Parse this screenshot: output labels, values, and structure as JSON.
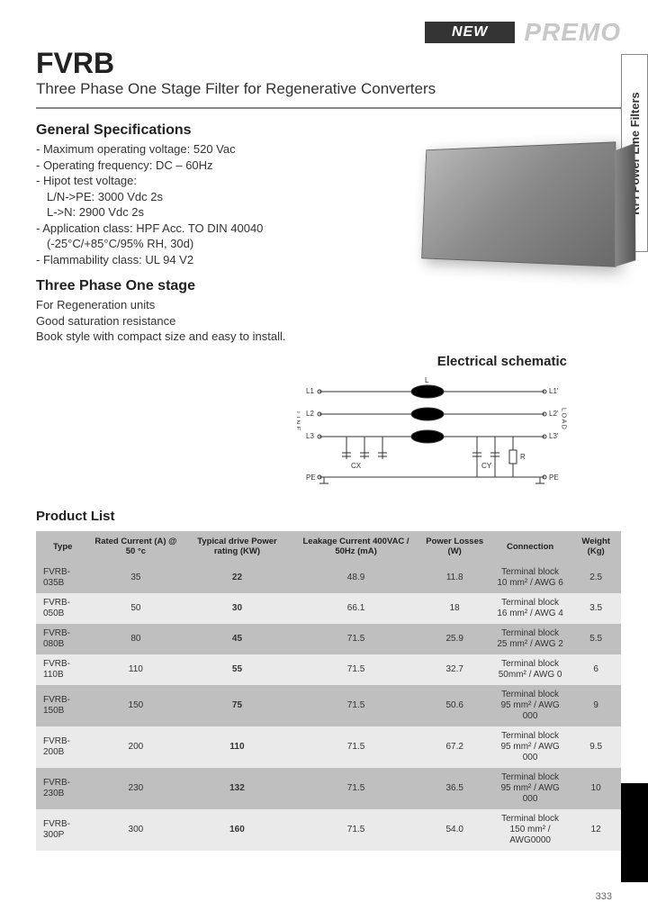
{
  "header": {
    "new_badge": "NEW",
    "brand": "PREMO",
    "product_code": "FVRB",
    "subtitle": "Three Phase One Stage Filter for Regenerative Converters"
  },
  "side_tab": "RFI Power Line Filters",
  "specs": {
    "title": "General Specifications",
    "lines": [
      "- Maximum operating voltage: 520 Vac",
      "- Operating frequency: DC – 60Hz",
      "- Hipot test voltage:",
      "L/N->PE: 3000 Vdc 2s",
      "L->N: 2900 Vdc 2s",
      "- Application class: HPF Acc. TO DIN 40040",
      "(-25°C/+85°C/95% RH, 30d)",
      "- Flammability class: UL 94 V2"
    ]
  },
  "three_phase": {
    "title": "Three Phase One stage",
    "lines": [
      "For Regeneration units",
      "Good saturation resistance",
      "Book style with compact size and easy to install."
    ]
  },
  "schematic": {
    "title": "Electrical schematic",
    "labels": {
      "l1": "L1",
      "l2": "L2",
      "l3": "L3",
      "l1p": "L1'",
      "l2p": "L2'",
      "l3p": "L3'",
      "line": "LINE",
      "load": "LOAD",
      "pe": "PE",
      "pe2": "PE",
      "cx": "CX",
      "cy": "CY",
      "r": "R",
      "l": "L"
    },
    "colors": {
      "wire": "#333333",
      "inductor_fill": "#000000",
      "cap_stroke": "#333333"
    }
  },
  "product_list": {
    "title": "Product List",
    "columns": [
      "Type",
      "Rated Current (A) @ 50 °c",
      "Typical drive Power rating (KW)",
      "Leakage Current 400VAC / 50Hz (mA)",
      "Power Losses (W)",
      "Connection",
      "Weight (Kg)"
    ],
    "rows": [
      [
        "FVRB-035B",
        "35",
        "22",
        "48.9",
        "11.8",
        "Terminal block\n10 mm² / AWG 6",
        "2.5"
      ],
      [
        "FVRB-050B",
        "50",
        "30",
        "66.1",
        "18",
        "Terminal block\n16 mm² / AWG 4",
        "3.5"
      ],
      [
        "FVRB-080B",
        "80",
        "45",
        "71.5",
        "25.9",
        "Terminal block\n25 mm² / AWG 2",
        "5.5"
      ],
      [
        "FVRB-110B",
        "110",
        "55",
        "71.5",
        "32.7",
        "Terminal block\n50mm² / AWG 0",
        "6"
      ],
      [
        "FVRB-150B",
        "150",
        "75",
        "71.5",
        "50.6",
        "Terminal block\n95 mm² / AWG 000",
        "9"
      ],
      [
        "FVRB-200B",
        "200",
        "110",
        "71.5",
        "67.2",
        "Terminal block\n95 mm² / AWG 000",
        "9.5"
      ],
      [
        "FVRB-230B",
        "230",
        "132",
        "71.5",
        "36.5",
        "Terminal block\n95 mm² / AWG 000",
        "10"
      ],
      [
        "FVRB-300P",
        "300",
        "160",
        "71.5",
        "54.0",
        "Terminal block\n150 mm² / AWG0000",
        "12"
      ]
    ]
  },
  "page_number": "333"
}
